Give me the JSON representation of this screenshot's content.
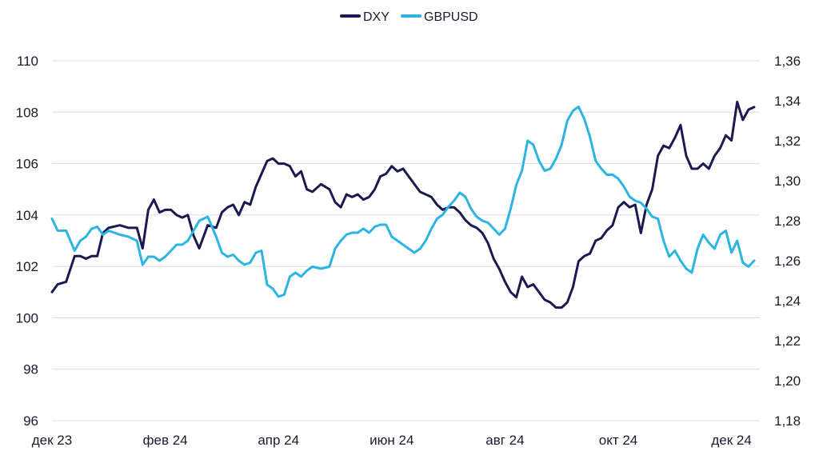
{
  "chart_data": {
    "type": "line",
    "title": "",
    "xlabel": "",
    "ylabel": "",
    "legend_position": "top-center",
    "grid": true,
    "x_ticks": [
      "дек 23",
      "фев 24",
      "апр 24",
      "июн 24",
      "авг 24",
      "окт 24",
      "дек 24"
    ],
    "x_range": [
      0,
      12.5
    ],
    "y_left": {
      "range": [
        96,
        110
      ],
      "ticks": [
        "96",
        "98",
        "100",
        "102",
        "104",
        "106",
        "108",
        "110"
      ]
    },
    "y_right": {
      "range": [
        1.18,
        1.36
      ],
      "ticks": [
        "1,18",
        "1,20",
        "1,22",
        "1,24",
        "1,26",
        "1,28",
        "1,30",
        "1,32",
        "1,34",
        "1,36"
      ]
    },
    "series": [
      {
        "name": "DXY",
        "axis": "left",
        "color": "#1b1a4f",
        "x": [
          0,
          0.1,
          0.25,
          0.4,
          0.5,
          0.6,
          0.7,
          0.8,
          0.9,
          1.0,
          1.2,
          1.35,
          1.5,
          1.6,
          1.7,
          1.8,
          1.9,
          2.0,
          2.1,
          2.2,
          2.3,
          2.4,
          2.5,
          2.6,
          2.75,
          2.9,
          3.0,
          3.1,
          3.2,
          3.3,
          3.4,
          3.5,
          3.6,
          3.7,
          3.8,
          3.9,
          4.0,
          4.1,
          4.2,
          4.3,
          4.4,
          4.5,
          4.6,
          4.75,
          4.9,
          5.0,
          5.1,
          5.2,
          5.3,
          5.4,
          5.5,
          5.6,
          5.7,
          5.8,
          5.9,
          6.0,
          6.1,
          6.2,
          6.3,
          6.4,
          6.5,
          6.6,
          6.7,
          6.8,
          6.9,
          7.0,
          7.1,
          7.2,
          7.3,
          7.4,
          7.5,
          7.6,
          7.7,
          7.8,
          7.9,
          8.0,
          8.1,
          8.2,
          8.3,
          8.4,
          8.5,
          8.6,
          8.7,
          8.8,
          8.9,
          9.0,
          9.1,
          9.2,
          9.3,
          9.4,
          9.5,
          9.6,
          9.7,
          9.8,
          9.9,
          10.0,
          10.1,
          10.2,
          10.3,
          10.4,
          10.5,
          10.6,
          10.7,
          10.8,
          10.9,
          11.0,
          11.1,
          11.2,
          11.3,
          11.4,
          11.5,
          11.6,
          11.7,
          11.8,
          11.9,
          12.0,
          12.1,
          12.2,
          12.3,
          12.4
        ],
        "values": [
          101.0,
          101.3,
          101.4,
          102.4,
          102.4,
          102.3,
          102.4,
          102.4,
          103.3,
          103.5,
          103.6,
          103.5,
          103.5,
          102.7,
          104.2,
          104.6,
          104.1,
          104.2,
          104.2,
          104.0,
          103.9,
          104.0,
          103.2,
          102.7,
          103.6,
          103.5,
          104.1,
          104.3,
          104.4,
          104.0,
          104.5,
          104.4,
          105.1,
          105.6,
          106.1,
          106.2,
          106.0,
          106.0,
          105.9,
          105.5,
          105.7,
          105.0,
          104.9,
          105.2,
          105.0,
          104.5,
          104.3,
          104.8,
          104.7,
          104.8,
          104.6,
          104.7,
          105.0,
          105.5,
          105.6,
          105.9,
          105.7,
          105.8,
          105.5,
          105.2,
          104.9,
          104.8,
          104.7,
          104.4,
          104.2,
          104.3,
          104.3,
          104.1,
          103.8,
          103.6,
          103.5,
          103.3,
          102.9,
          102.3,
          101.9,
          101.4,
          101.0,
          100.8,
          101.6,
          101.2,
          101.3,
          101.0,
          100.7,
          100.6,
          100.4,
          100.4,
          100.6,
          101.2,
          102.2,
          102.4,
          102.5,
          103.0,
          103.1,
          103.4,
          103.6,
          104.3,
          104.5,
          104.3,
          104.4,
          103.3,
          104.4,
          105.0,
          106.3,
          106.7,
          106.6,
          107.0,
          107.5,
          106.3,
          105.8,
          105.8,
          106.0,
          105.8,
          106.3,
          106.6,
          107.1,
          106.9,
          108.4,
          107.7,
          108.1,
          108.2
        ]
      },
      {
        "name": "GBPUSD",
        "axis": "right",
        "color": "#2bb5e0",
        "x": [
          0,
          0.1,
          0.25,
          0.4,
          0.5,
          0.6,
          0.7,
          0.8,
          0.9,
          1.0,
          1.2,
          1.35,
          1.5,
          1.6,
          1.7,
          1.8,
          1.9,
          2.0,
          2.1,
          2.2,
          2.3,
          2.4,
          2.5,
          2.6,
          2.75,
          2.9,
          3.0,
          3.1,
          3.2,
          3.3,
          3.4,
          3.5,
          3.6,
          3.7,
          3.8,
          3.9,
          4.0,
          4.1,
          4.2,
          4.3,
          4.4,
          4.5,
          4.6,
          4.75,
          4.9,
          5.0,
          5.1,
          5.2,
          5.3,
          5.4,
          5.5,
          5.6,
          5.7,
          5.8,
          5.9,
          6.0,
          6.1,
          6.2,
          6.3,
          6.4,
          6.5,
          6.6,
          6.7,
          6.8,
          6.9,
          7.0,
          7.1,
          7.2,
          7.3,
          7.4,
          7.5,
          7.6,
          7.7,
          7.8,
          7.9,
          8.0,
          8.1,
          8.2,
          8.3,
          8.4,
          8.5,
          8.6,
          8.7,
          8.8,
          8.9,
          9.0,
          9.1,
          9.2,
          9.3,
          9.4,
          9.5,
          9.6,
          9.7,
          9.8,
          9.9,
          10.0,
          10.1,
          10.2,
          10.3,
          10.4,
          10.5,
          10.6,
          10.7,
          10.8,
          10.9,
          11.0,
          11.1,
          11.2,
          11.3,
          11.4,
          11.5,
          11.6,
          11.7,
          11.8,
          11.9,
          12.0,
          12.1,
          12.2,
          12.3,
          12.4
        ],
        "values": [
          1.281,
          1.275,
          1.275,
          1.265,
          1.27,
          1.272,
          1.276,
          1.277,
          1.273,
          1.275,
          1.273,
          1.272,
          1.27,
          1.258,
          1.262,
          1.262,
          1.26,
          1.262,
          1.265,
          1.268,
          1.268,
          1.27,
          1.275,
          1.28,
          1.282,
          1.272,
          1.264,
          1.262,
          1.263,
          1.26,
          1.258,
          1.259,
          1.264,
          1.265,
          1.248,
          1.246,
          1.242,
          1.243,
          1.252,
          1.254,
          1.252,
          1.255,
          1.257,
          1.256,
          1.257,
          1.266,
          1.27,
          1.273,
          1.274,
          1.274,
          1.276,
          1.274,
          1.277,
          1.278,
          1.278,
          1.272,
          1.27,
          1.268,
          1.266,
          1.264,
          1.266,
          1.27,
          1.276,
          1.281,
          1.283,
          1.287,
          1.29,
          1.294,
          1.292,
          1.286,
          1.282,
          1.28,
          1.279,
          1.276,
          1.273,
          1.276,
          1.286,
          1.298,
          1.305,
          1.32,
          1.318,
          1.31,
          1.305,
          1.306,
          1.311,
          1.318,
          1.33,
          1.335,
          1.337,
          1.331,
          1.322,
          1.31,
          1.306,
          1.303,
          1.303,
          1.301,
          1.297,
          1.292,
          1.29,
          1.289,
          1.286,
          1.282,
          1.281,
          1.27,
          1.262,
          1.265,
          1.26,
          1.256,
          1.254,
          1.266,
          1.273,
          1.269,
          1.266,
          1.273,
          1.275,
          1.264,
          1.27,
          1.259,
          1.257,
          1.26
        ]
      }
    ]
  }
}
